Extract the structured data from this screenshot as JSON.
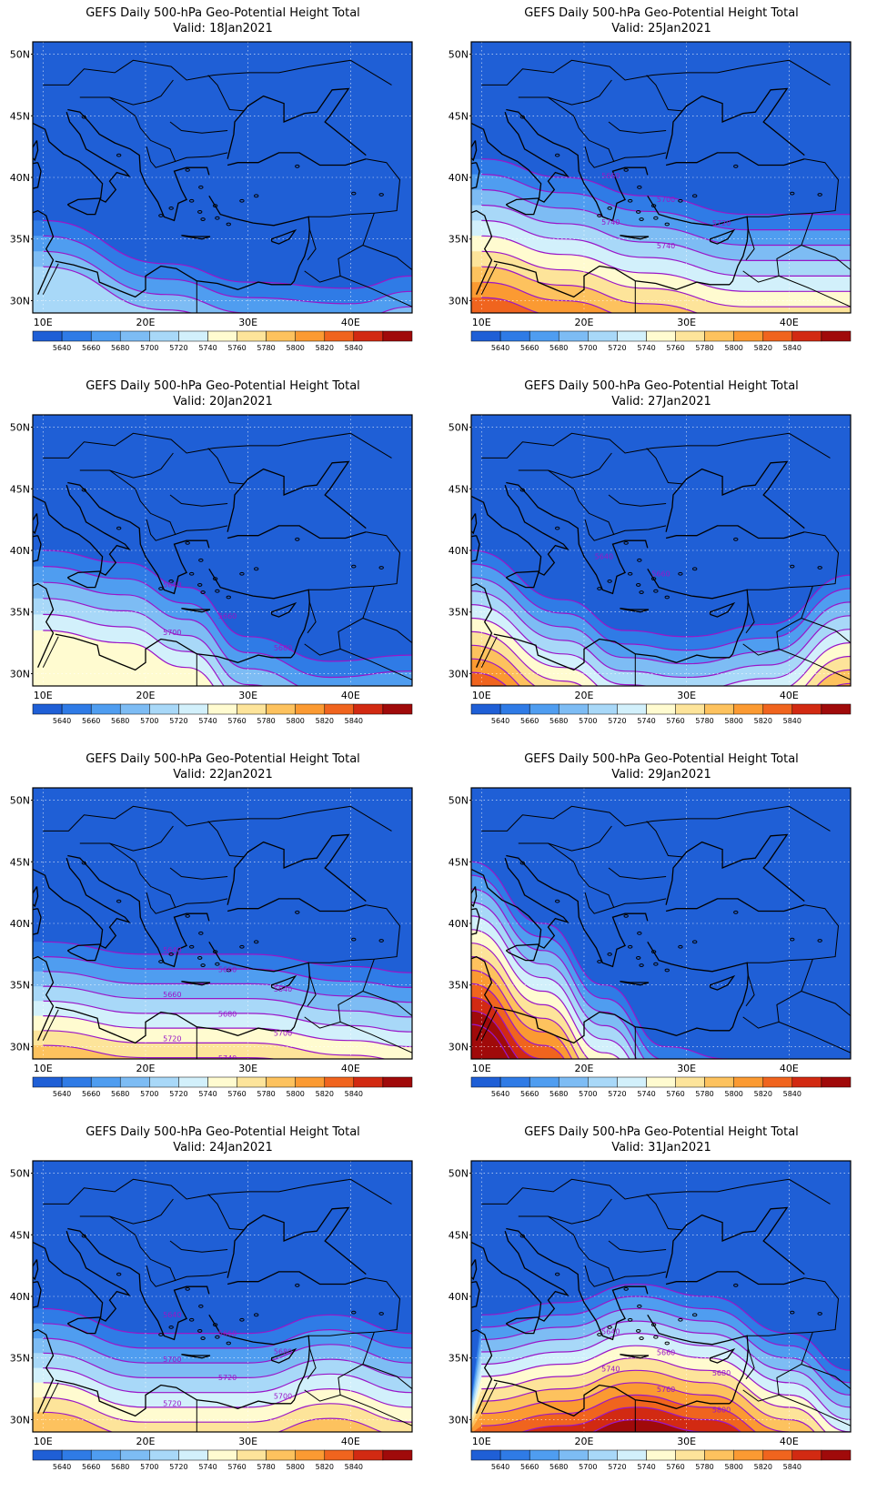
{
  "panels": [
    {
      "title": "GEFS Daily 500-hPa Geo-Potential Height Total",
      "valid": "Valid: 18Jan2021",
      "contour_labels": []
    },
    {
      "title": "GEFS Daily 500-hPa Geo-Potential Height Total",
      "valid": "Valid: 25Jan2021",
      "contour_labels": [
        "5660",
        "5700",
        "5720",
        "5740",
        "5740"
      ]
    },
    {
      "title": "GEFS Daily 500-hPa Geo-Potential Height Total",
      "valid": "Valid: 20Jan2021",
      "contour_labels": [
        "5640",
        "5660",
        "5680",
        "5700"
      ]
    },
    {
      "title": "GEFS Daily 500-hPa Geo-Potential Height Total",
      "valid": "Valid: 27Jan2021",
      "contour_labels": [
        "5640",
        "5660"
      ]
    },
    {
      "title": "GEFS Daily 500-hPa Geo-Potential Height Total",
      "valid": "Valid: 22Jan2021",
      "contour_labels": [
        "5640",
        "5660",
        "5640",
        "5660",
        "5680",
        "5700",
        "5720",
        "5740"
      ]
    },
    {
      "title": "GEFS Daily 500-hPa Geo-Potential Height Total",
      "valid": "Valid: 29Jan2021",
      "contour_labels": []
    },
    {
      "title": "GEFS Daily 500-hPa Geo-Potential Height Total",
      "valid": "Valid: 24Jan2021",
      "contour_labels": [
        "5640",
        "5660",
        "5680",
        "5700",
        "5720",
        "5700",
        "5720"
      ]
    },
    {
      "title": "GEFS Daily 500-hPa Geo-Potential Height Total",
      "valid": "Valid: 31Jan2021",
      "contour_labels": [
        "5640",
        "5660",
        "5680",
        "5740",
        "5760",
        "5800"
      ]
    }
  ],
  "lat_ticks": [
    "50N",
    "45N",
    "40N",
    "35N",
    "30N"
  ],
  "lon_ticks": [
    "10E",
    "20E",
    "30E",
    "40E"
  ],
  "colorbar_labels": [
    "5640",
    "5660",
    "5680",
    "5700",
    "5720",
    "5740",
    "5760",
    "5780",
    "5800",
    "5820",
    "5840"
  ],
  "colorbar_colors": [
    "#1f5fd6",
    "#2f7be6",
    "#4f9df0",
    "#7dbcf4",
    "#a8d8f8",
    "#d2f0fb",
    "#fffbd0",
    "#fde49a",
    "#fdc25e",
    "#fb9a32",
    "#f0641e",
    "#d22a12",
    "#a00a0a"
  ],
  "colors": {
    "background_field": "#2865d1",
    "contour": "#9a16c8",
    "coastline": "#000000"
  }
}
